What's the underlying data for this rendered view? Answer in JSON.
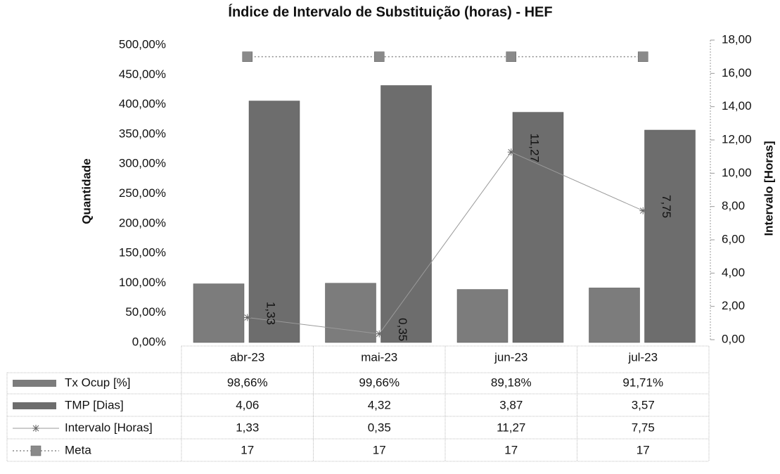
{
  "chart_data": {
    "type": "bar",
    "title": "Índice de Intervalo de Substituição (horas) - HEF",
    "ylabel": "Quantidade",
    "y2label": "Intervalo [Horas]",
    "categories": [
      "abr-23",
      "mai-23",
      "jun-23",
      "jul-23"
    ],
    "ylim": [
      0,
      5
    ],
    "yticks": [
      {
        "value": 0,
        "label": "0,00%"
      },
      {
        "value": 0.5,
        "label": "50,00%"
      },
      {
        "value": 1,
        "label": "100,00%"
      },
      {
        "value": 1.5,
        "label": "150,00%"
      },
      {
        "value": 2,
        "label": "200,00%"
      },
      {
        "value": 2.5,
        "label": "250,00%"
      },
      {
        "value": 3,
        "label": "300,00%"
      },
      {
        "value": 3.5,
        "label": "350,00%"
      },
      {
        "value": 4,
        "label": "400,00%"
      },
      {
        "value": 4.5,
        "label": "450,00%"
      },
      {
        "value": 5,
        "label": "500,00%"
      }
    ],
    "y2lim": [
      0,
      18
    ],
    "y2ticks": [
      {
        "value": 0,
        "label": "0,00"
      },
      {
        "value": 2,
        "label": "2,00"
      },
      {
        "value": 4,
        "label": "4,00"
      },
      {
        "value": 6,
        "label": "6,00"
      },
      {
        "value": 8,
        "label": "8,00"
      },
      {
        "value": 10,
        "label": "10,00"
      },
      {
        "value": 12,
        "label": "12,00"
      },
      {
        "value": 14,
        "label": "14,00"
      },
      {
        "value": 16,
        "label": "16,00"
      },
      {
        "value": 18,
        "label": "18,00"
      }
    ],
    "series": [
      {
        "name": "Tx Ocup [%]",
        "type": "bar",
        "color": "#7c7c7c",
        "values": [
          0.9866,
          0.9966,
          0.8918,
          0.9171
        ],
        "value_labels": [
          "98,66%",
          "99,66%",
          "89,18%",
          "91,71%"
        ]
      },
      {
        "name": "TMP [Dias]",
        "type": "bar",
        "color": "#6d6d6d",
        "values": [
          4.06,
          4.32,
          3.87,
          3.57
        ],
        "value_labels": [
          "4,06",
          "4,32",
          "3,87",
          "3,57"
        ]
      },
      {
        "name": "Intervalo [Horas]",
        "type": "line",
        "axis": "y2",
        "marker": "asterisk",
        "color": "#9a9a9a",
        "values": [
          1.33,
          0.35,
          11.27,
          7.75
        ],
        "value_labels": [
          "1,33",
          "0,35",
          "11,27",
          "7,75"
        ]
      },
      {
        "name": "Meta",
        "type": "line",
        "axis": "y2",
        "marker": "square",
        "color": "#8a8a8a",
        "values": [
          17,
          17,
          17,
          17
        ]
      }
    ]
  }
}
